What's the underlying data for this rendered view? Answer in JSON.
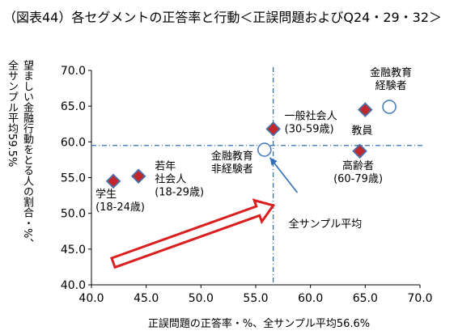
{
  "title": "（図表44）各セグメントの正答率と行動＜正誤問題およびQ24・29・32＞",
  "chart_data": {
    "type": "scatter",
    "title": "（図表44）各セグメントの正答率と行動＜正誤問題およびQ24・29・32＞",
    "xlabel": "正誤問題の正答率・%、全サンプル平均56.6%",
    "ylabel_lines": [
      "望ましい金融行動をとる人の割合・%、",
      "全サンプル平均59.5%"
    ],
    "xlim": [
      40,
      70
    ],
    "ylim": [
      40,
      70
    ],
    "xticks": [
      "40.0",
      "45.0",
      "50.0",
      "55.0",
      "60.0",
      "65.0",
      "70.0"
    ],
    "yticks": [
      "40.0",
      "45.0",
      "50.0",
      "55.0",
      "60.0",
      "65.0",
      "70.0"
    ],
    "reference_lines": {
      "x": 56.6,
      "y": 59.5
    },
    "points": [
      {
        "label": [
          "学生",
          "(18-24歳)"
        ],
        "x": 42.0,
        "y": 54.5,
        "marker": "diamond"
      },
      {
        "label": [
          "若年",
          "社会人",
          "(18-29歳)"
        ],
        "x": 44.3,
        "y": 55.2,
        "marker": "diamond"
      },
      {
        "label": [
          "一般社会人",
          "(30-59歳)"
        ],
        "x": 56.6,
        "y": 61.8,
        "marker": "diamond"
      },
      {
        "label": [
          "教員"
        ],
        "x": 65.0,
        "y": 64.5,
        "marker": "diamond"
      },
      {
        "label": [
          "高齢者",
          "(60-79歳)"
        ],
        "x": 64.5,
        "y": 58.7,
        "marker": "diamond"
      },
      {
        "label": [
          "金融教育",
          "経験者"
        ],
        "x": 67.2,
        "y": 64.9,
        "marker": "circle"
      },
      {
        "label": [
          "金融教育",
          "非経験者"
        ],
        "x": 55.8,
        "y": 58.9,
        "marker": "circle"
      }
    ],
    "annotation": "全サンプル平均",
    "colors": {
      "diamond_fill": "#c0282d",
      "diamond_stroke": "#4a6fa8",
      "circle_stroke": "#4a7fc1",
      "refline": "#2e6fb7",
      "arrow_outline": "#d92020",
      "pointer": "#2e6fb7"
    }
  }
}
